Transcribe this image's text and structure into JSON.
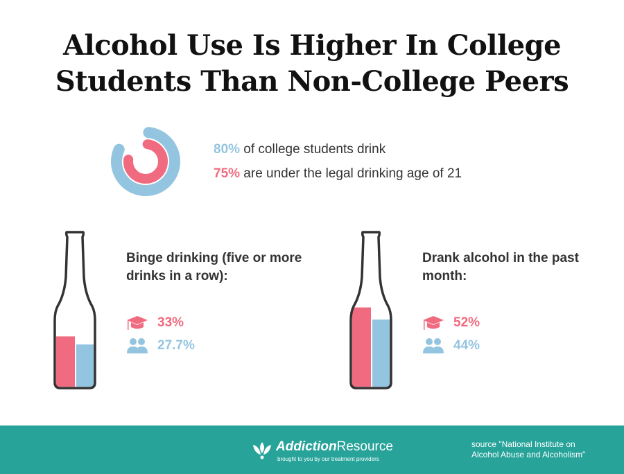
{
  "title_line1": "Alcohol Use Is Higher In College",
  "title_line2": "Students Than Non-College Peers",
  "colors": {
    "college": "#f06b80",
    "non_college": "#93c5e0",
    "footer": "#27a39a",
    "outline": "#333333"
  },
  "stats": [
    {
      "value": "80%",
      "text": " of college students drink",
      "color": "blue"
    },
    {
      "value": "75%",
      "text": " are under the legal drinking age of 21",
      "color": "pink"
    }
  ],
  "chart_data": [
    {
      "type": "pie",
      "subtype": "donut-rings",
      "series": [
        {
          "label": "of college students drink",
          "value": 80,
          "color": "#93c5e0"
        },
        {
          "label": "are under the legal drinking age of 21",
          "value": 75,
          "color": "#f06b80"
        }
      ]
    },
    {
      "type": "bar",
      "title": "Binge drinking (five or more drinks in a row):",
      "values": [
        33,
        27.7
      ],
      "labels": [
        "33%",
        "27.7%"
      ],
      "icons": [
        "graduation-cap-icon",
        "people-icon"
      ],
      "colors": [
        "#f06b80",
        "#93c5e0"
      ]
    },
    {
      "type": "bar",
      "title": "Drank alcohol in the past month:",
      "values": [
        52,
        44
      ],
      "labels": [
        "52%",
        "44%"
      ],
      "icons": [
        "graduation-cap-icon",
        "people-icon"
      ],
      "colors": [
        "#f06b80",
        "#93c5e0"
      ]
    }
  ],
  "footer": {
    "brand_bold": "Addiction",
    "brand_rest": "Resource",
    "tagline": "brought to you by our treatment providers",
    "source_line1": "source \"National Institute on",
    "source_line2": "Alcohol Abuse and Alcoholism\""
  }
}
